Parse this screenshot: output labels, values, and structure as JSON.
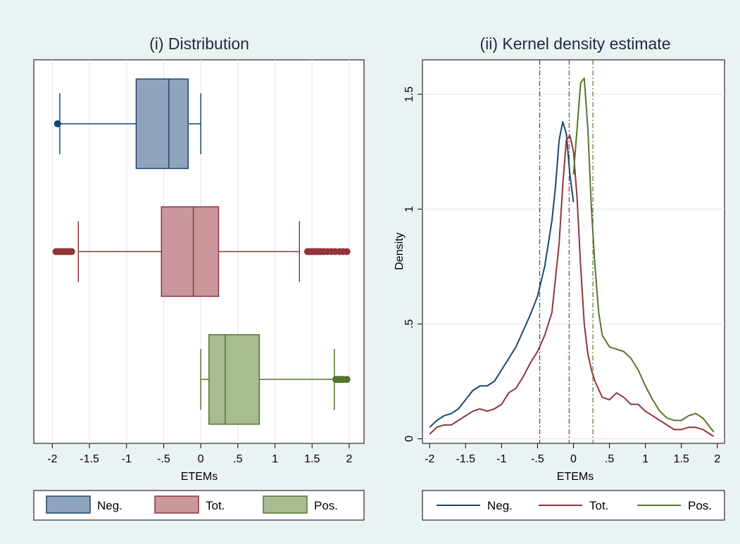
{
  "chart_data": [
    {
      "type": "box",
      "title": "(i) Distribution",
      "xlabel": "ETEMs",
      "ylabel": "",
      "xlim": [
        -2.25,
        2.2
      ],
      "xticks": [
        -2,
        -1.5,
        -1,
        -0.5,
        0,
        0.5,
        1,
        1.5,
        2
      ],
      "xtick_labels": [
        "-2",
        "-1.5",
        "-1",
        "-.5",
        "0",
        ".5",
        "1",
        "1.5",
        "2"
      ],
      "grid": "vertical",
      "legend_position": "bottom",
      "series": [
        {
          "name": "Neg.",
          "color": "#1a476f",
          "fill": "#90a3bc",
          "whisker_low": -1.9,
          "q1": -0.87,
          "median": -0.43,
          "q3": -0.17,
          "whisker_high": 0,
          "outliers": [
            -1.93
          ]
        },
        {
          "name": "Tot.",
          "color": "#90353b",
          "fill": "#c9979c",
          "whisker_low": -1.65,
          "q1": -0.53,
          "median": -0.1,
          "q3": 0.24,
          "whisker_high": 1.33,
          "outliers": [
            -1.95,
            -1.92,
            -1.89,
            -1.86,
            -1.83,
            -1.8,
            -1.77,
            -1.74,
            1.44,
            1.47,
            1.5,
            1.53,
            1.56,
            1.59,
            1.62,
            1.66,
            1.71,
            1.76,
            1.81,
            1.87,
            1.92,
            1.97
          ]
        },
        {
          "name": "Pos.",
          "color": "#55752f",
          "fill": "#a9bb91",
          "whisker_low": 0,
          "q1": 0.11,
          "median": 0.33,
          "q3": 0.79,
          "whisker_high": 1.8,
          "outliers": [
            1.82,
            1.85,
            1.88,
            1.92,
            1.97
          ]
        }
      ]
    },
    {
      "type": "line",
      "title": "(ii) Kernel density estimate",
      "xlabel": "ETEMs",
      "ylabel": "Density",
      "xlim": [
        -2.1,
        2.1
      ],
      "ylim": [
        -0.02,
        1.65
      ],
      "xticks": [
        -2,
        -1.5,
        -1,
        -0.5,
        0,
        0.5,
        1,
        1.5,
        2
      ],
      "xtick_labels": [
        "-2",
        "-1.5",
        "-1",
        "-.5",
        "0",
        ".5",
        "1",
        "1.5",
        "2"
      ],
      "yticks": [
        0,
        0.5,
        1,
        1.5
      ],
      "ytick_labels": [
        "0",
        ".5",
        "1",
        "1.5"
      ],
      "grid": "horizontal",
      "legend_position": "bottom",
      "vlines": [
        {
          "x": -0.47,
          "color": "#1a476f"
        },
        {
          "x": -0.06,
          "color": "#90353b"
        },
        {
          "x": 0.27,
          "color": "#55752f"
        }
      ],
      "series": [
        {
          "name": "Neg.",
          "color": "#1a476f",
          "x": [
            -2,
            -1.9,
            -1.8,
            -1.7,
            -1.6,
            -1.5,
            -1.4,
            -1.3,
            -1.2,
            -1.1,
            -1,
            -0.9,
            -0.8,
            -0.7,
            -0.6,
            -0.5,
            -0.4,
            -0.3,
            -0.25,
            -0.2,
            -0.15,
            -0.1,
            -0.05,
            0
          ],
          "y": [
            0.05,
            0.08,
            0.1,
            0.11,
            0.13,
            0.17,
            0.21,
            0.23,
            0.23,
            0.25,
            0.3,
            0.35,
            0.4,
            0.47,
            0.54,
            0.62,
            0.75,
            0.95,
            1.1,
            1.3,
            1.38,
            1.33,
            1.15,
            1.03
          ]
        },
        {
          "name": "Tot.",
          "color": "#90353b",
          "x": [
            -2,
            -1.9,
            -1.8,
            -1.7,
            -1.6,
            -1.5,
            -1.4,
            -1.3,
            -1.2,
            -1.1,
            -1,
            -0.9,
            -0.8,
            -0.7,
            -0.6,
            -0.5,
            -0.4,
            -0.3,
            -0.2,
            -0.15,
            -0.1,
            -0.05,
            0,
            0.05,
            0.1,
            0.15,
            0.2,
            0.25,
            0.3,
            0.4,
            0.5,
            0.6,
            0.7,
            0.8,
            0.9,
            1,
            1.1,
            1.2,
            1.3,
            1.4,
            1.5,
            1.6,
            1.7,
            1.8,
            1.9,
            1.95
          ],
          "y": [
            0.02,
            0.05,
            0.06,
            0.06,
            0.08,
            0.1,
            0.12,
            0.13,
            0.12,
            0.13,
            0.15,
            0.2,
            0.22,
            0.27,
            0.33,
            0.38,
            0.45,
            0.55,
            0.85,
            1.1,
            1.3,
            1.32,
            1.25,
            1.05,
            0.75,
            0.5,
            0.37,
            0.3,
            0.25,
            0.18,
            0.17,
            0.2,
            0.18,
            0.15,
            0.15,
            0.12,
            0.1,
            0.08,
            0.06,
            0.04,
            0.04,
            0.05,
            0.05,
            0.04,
            0.02,
            0.01
          ]
        },
        {
          "name": "Pos.",
          "color": "#55752f",
          "x": [
            0,
            0.05,
            0.1,
            0.15,
            0.2,
            0.25,
            0.3,
            0.35,
            0.4,
            0.5,
            0.6,
            0.7,
            0.8,
            0.9,
            1,
            1.1,
            1.2,
            1.3,
            1.4,
            1.5,
            1.6,
            1.7,
            1.8,
            1.9,
            1.95
          ],
          "y": [
            1.15,
            1.35,
            1.55,
            1.57,
            1.35,
            1.0,
            0.75,
            0.55,
            0.45,
            0.4,
            0.39,
            0.38,
            0.35,
            0.3,
            0.23,
            0.17,
            0.12,
            0.09,
            0.08,
            0.08,
            0.1,
            0.11,
            0.09,
            0.05,
            0.03
          ]
        }
      ]
    }
  ]
}
